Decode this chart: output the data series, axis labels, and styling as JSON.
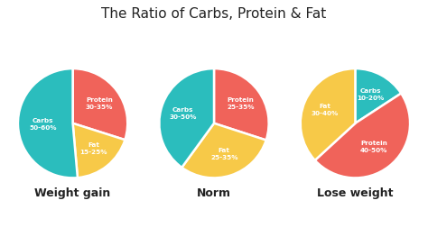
{
  "title": "The Ratio of Carbs, Protein & Fat",
  "title_fontsize": 11,
  "background_color": "#ffffff",
  "charts": [
    {
      "label": "Weight gain",
      "slices": [
        {
          "name": "Protein",
          "range": "30-35%",
          "value": 32,
          "color": "#f0635a"
        },
        {
          "name": "Fat",
          "range": "15-25%",
          "value": 20,
          "color": "#f7c948"
        },
        {
          "name": "Carbs",
          "range": "50-60%",
          "value": 55,
          "color": "#2bbdbd"
        }
      ],
      "startangle": 90,
      "counterclock": false
    },
    {
      "label": "Norm",
      "slices": [
        {
          "name": "Protein",
          "range": "25-35%",
          "value": 30,
          "color": "#f0635a"
        },
        {
          "name": "Fat",
          "range": "25-35%",
          "value": 30,
          "color": "#f7c948"
        },
        {
          "name": "Carbs",
          "range": "30-50%",
          "value": 40,
          "color": "#2bbdbd"
        }
      ],
      "startangle": 90,
      "counterclock": false
    },
    {
      "label": "Lose weight",
      "slices": [
        {
          "name": "Carbs",
          "range": "10-20%",
          "value": 15,
          "color": "#2bbdbd"
        },
        {
          "name": "Protein",
          "range": "40-50%",
          "value": 45,
          "color": "#f0635a"
        },
        {
          "name": "Fat",
          "range": "30-40%",
          "value": 35,
          "color": "#f7c948"
        }
      ],
      "startangle": 90,
      "counterclock": false
    }
  ],
  "text_color": "#ffffff",
  "label_fontsize": 5.2,
  "chart_label_fontsize": 9
}
